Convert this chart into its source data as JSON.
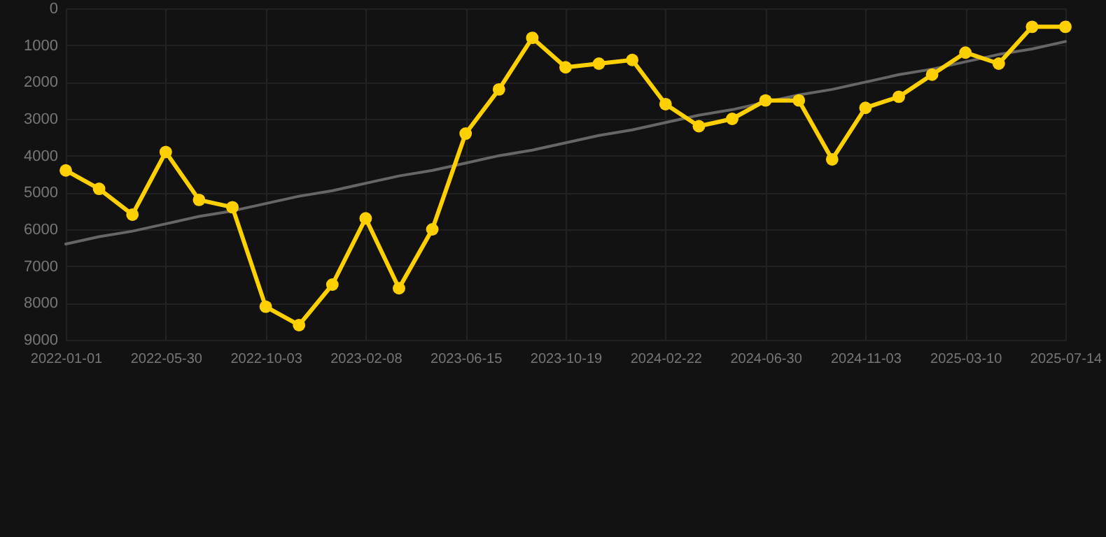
{
  "chart_data": {
    "type": "line",
    "categories": [
      "2022-01-01",
      null,
      null,
      "2022-05-30",
      null,
      null,
      "2022-10-03",
      null,
      null,
      "2023-02-08",
      null,
      null,
      "2023-06-15",
      null,
      null,
      "2023-10-19",
      null,
      null,
      "2024-02-22",
      null,
      null,
      "2024-06-30",
      null,
      null,
      "2024-11-03",
      null,
      null,
      "2025-03-10",
      null,
      null,
      "2025-07-14"
    ],
    "series": [
      {
        "color": "#ffd000",
        "marker": "circle",
        "values": [
          4400,
          4900,
          5600,
          3900,
          5200,
          5400,
          8100,
          8600,
          7500,
          5700,
          7600,
          6000,
          3400,
          2200,
          800,
          1600,
          1500,
          1400,
          2600,
          3200,
          3000,
          2500,
          2500,
          4100,
          2700,
          2400,
          1800,
          1200,
          1500,
          500,
          500
        ]
      },
      {
        "type": "line",
        "color": "#666666",
        "marker": "none",
        "values": [
          6400,
          6200,
          6050,
          5850,
          5650,
          5500,
          5300,
          5100,
          4950,
          4750,
          4550,
          4400,
          4200,
          4000,
          3850,
          3650,
          3450,
          3300,
          3100,
          2900,
          2750,
          2550,
          2350,
          2200,
          2000,
          1800,
          1650,
          1450,
          1250,
          1100,
          900
        ]
      }
    ],
    "ylim": [
      9000,
      0
    ],
    "yticks": [
      0,
      1000,
      2000,
      3000,
      4000,
      5000,
      6000,
      7000,
      8000,
      9000
    ],
    "grid": true
  }
}
